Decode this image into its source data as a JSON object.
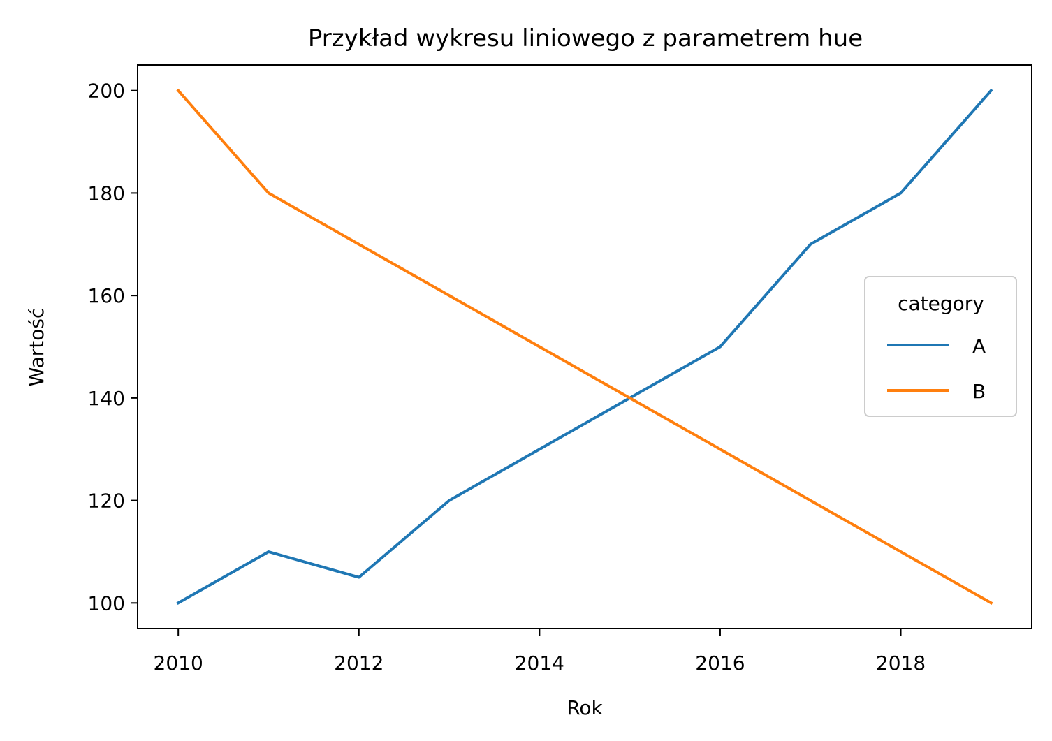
{
  "chart_data": {
    "type": "line",
    "title": "Przykład wykresu liniowego z parametrem hue",
    "xlabel": "Rok",
    "ylabel": "Wartość",
    "x": [
      2010,
      2011,
      2012,
      2013,
      2014,
      2015,
      2016,
      2017,
      2018,
      2019
    ],
    "series": [
      {
        "name": "A",
        "color": "#1f77b4",
        "values": [
          100,
          110,
          105,
          120,
          130,
          140,
          150,
          170,
          180,
          200
        ]
      },
      {
        "name": "B",
        "color": "#ff7f0e",
        "values": [
          200,
          180,
          170,
          160,
          150,
          140,
          130,
          120,
          110,
          100
        ]
      }
    ],
    "xlim": [
      2009.55,
      2019.45
    ],
    "ylim": [
      95,
      205
    ],
    "xticks": [
      2010,
      2012,
      2014,
      2016,
      2018
    ],
    "yticks": [
      100,
      120,
      140,
      160,
      180,
      200
    ],
    "grid": false,
    "legend": {
      "title": "category",
      "placement": "center-right"
    }
  }
}
